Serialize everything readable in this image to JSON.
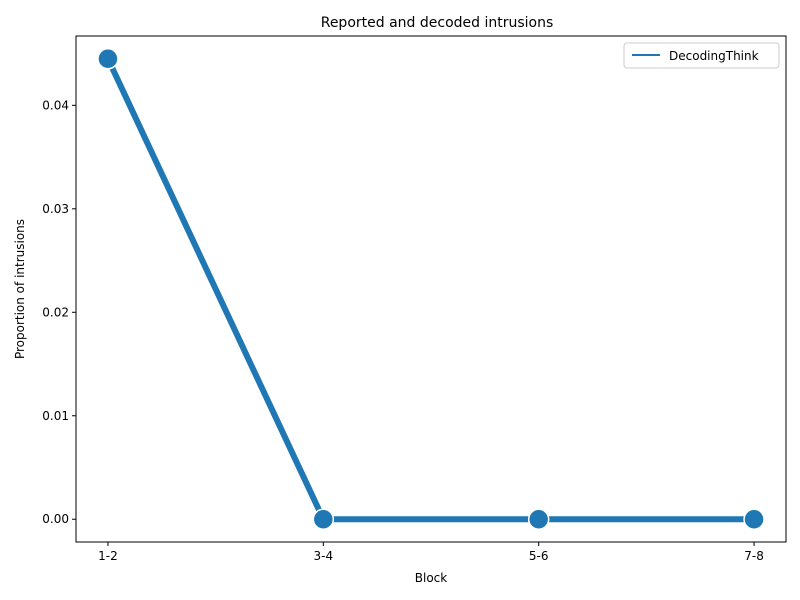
{
  "chart_data": {
    "type": "line",
    "title": "Reported and decoded intrusions",
    "xlabel": "Block",
    "ylabel": "Proportion of intrusions",
    "categories": [
      "1-2",
      "3-4",
      "5-6",
      "7-8"
    ],
    "series": [
      {
        "name": "DecodingThink",
        "values": [
          0.0445,
          0.0,
          0.0,
          0.0
        ],
        "color": "#1f77b4"
      }
    ],
    "ylim": [
      -0.0022,
      0.0467
    ],
    "yticks": [
      0.0,
      0.01,
      0.02,
      0.03,
      0.04
    ],
    "ytick_labels": [
      "0.00",
      "0.01",
      "0.02",
      "0.03",
      "0.04"
    ],
    "grid": false,
    "legend_position": "top-right"
  },
  "colors": {
    "series": "#1f77b4",
    "marker_edge": "#ffffff",
    "axis": "#000000"
  }
}
